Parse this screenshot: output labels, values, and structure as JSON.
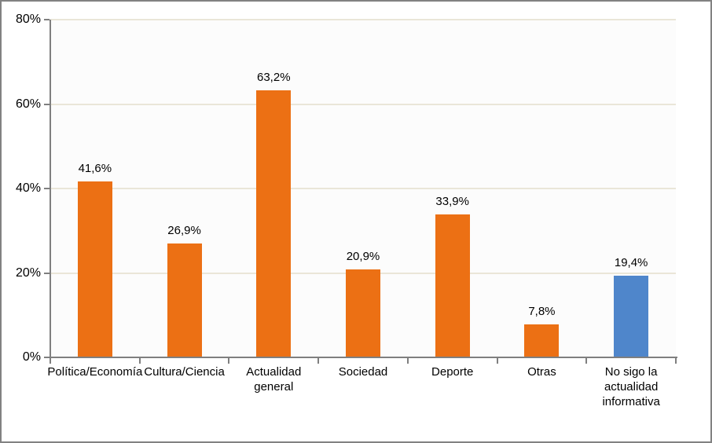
{
  "chart": {
    "frame_border_color": "#828282",
    "plot_background": "#FCFCFC",
    "gridline_color": "#EAE6D8",
    "axis_color": "#7F7F7F",
    "text_color": "#000000",
    "bar_color_default": "#EC7014",
    "bar_color_highlight": "#4F86CB"
  },
  "chart_data": {
    "type": "bar",
    "title": "",
    "xlabel": "",
    "ylabel": "",
    "categories": [
      "Política/Economía",
      "Cultura/Ciencia",
      "Actualidad general",
      "Sociedad",
      "Deporte",
      "Otras",
      "No sigo la actualidad informativa"
    ],
    "category_tick_labels": [
      "Política/Economía",
      "Cultura/Ciencia",
      "Actualidad\ngeneral",
      "Sociedad",
      "Deporte",
      "Otras",
      "No sigo la\nactualidad\ninformativa"
    ],
    "values": [
      41.6,
      26.9,
      63.2,
      20.9,
      33.9,
      7.8,
      19.4
    ],
    "value_labels": [
      "41,6%",
      "26,9%",
      "63,2%",
      "20,9%",
      "33,9%",
      "7,8%",
      "19,4%"
    ],
    "bar_colors": [
      "#EC7014",
      "#EC7014",
      "#EC7014",
      "#EC7014",
      "#EC7014",
      "#EC7014",
      "#4F86CB"
    ],
    "ylim": [
      0,
      80
    ],
    "yticks": [
      0,
      20,
      40,
      60,
      80
    ],
    "ytick_labels": [
      "0%",
      "20%",
      "40%",
      "60%",
      "80%"
    ],
    "grid": "horizontal",
    "legend": "none"
  }
}
